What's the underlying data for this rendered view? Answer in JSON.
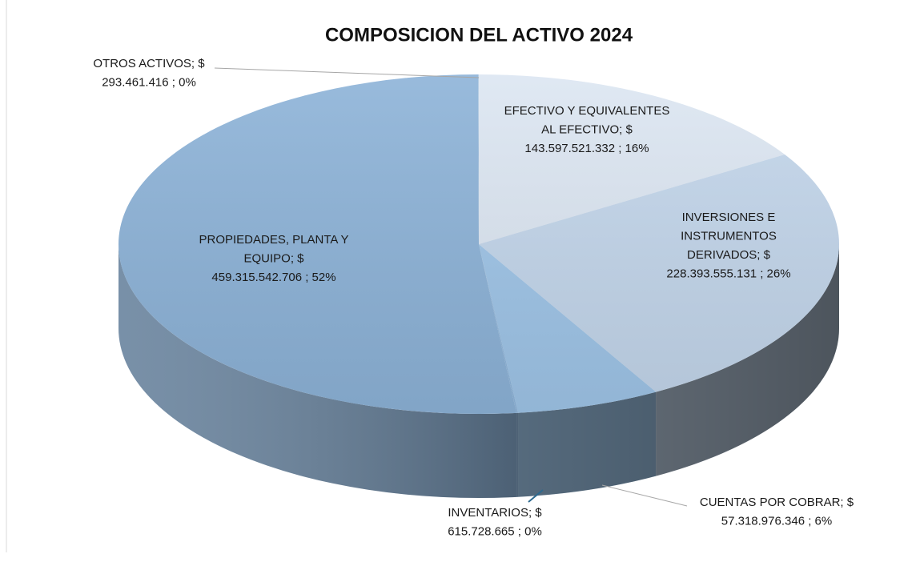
{
  "chart_data": {
    "type": "pie3d",
    "title": "COMPOSICION DEL ACTIVO 2024",
    "categories": [
      "EFECTIVO Y EQUIVALENTES AL EFECTIVO",
      "INVERSIONES E INSTRUMENTOS DERIVADOS",
      "CUENTAS POR COBRAR",
      "INVENTARIOS",
      "PROPIEDADES, PLANTA Y EQUIPO",
      "OTROS ACTIVOS"
    ],
    "values": [
      143597521332,
      228393555131,
      57318976346,
      615728665,
      459315542706,
      293461416
    ],
    "colors": [
      "#dce6f2",
      "#c3d6eb",
      "#9fc5e8",
      "#8fb6dc",
      "#8db3d8",
      "#a9c4e0"
    ],
    "data_labels": [
      [
        "EFECTIVO Y EQUIVALENTES",
        "AL EFECTIVO; $",
        "143.597.521.332 ; 16%"
      ],
      [
        "INVERSIONES E",
        "INSTRUMENTOS",
        "DERIVADOS; $",
        "228.393.555.131 ; 26%"
      ],
      [
        "CUENTAS POR COBRAR; $",
        "57.318.976.346 ; 6%"
      ],
      [
        "INVENTARIOS; $",
        "615.728.665 ; 0%"
      ],
      [
        "PROPIEDADES, PLANTA Y",
        "EQUIPO; $",
        "459.315.542.706 ; 52%"
      ],
      [
        "OTROS ACTIVOS; $",
        "293.461.416 ; 0%"
      ]
    ]
  }
}
